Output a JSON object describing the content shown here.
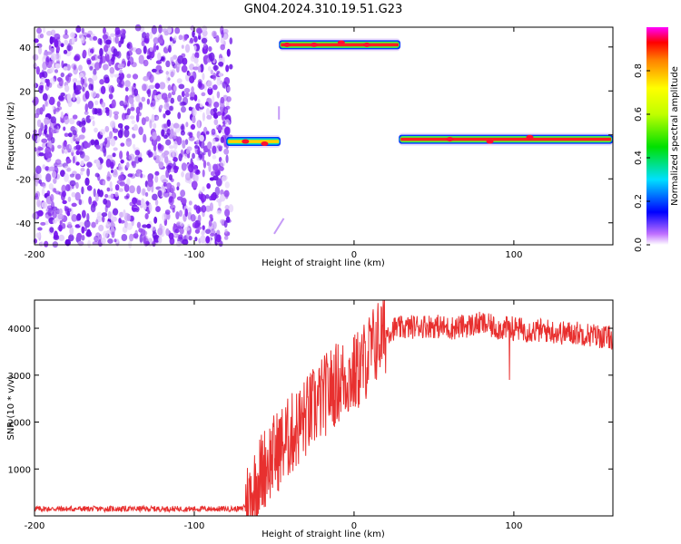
{
  "title": "GN04.2024.310.19.51.G23",
  "chart_data": [
    {
      "type": "heatmap",
      "xlabel": "Height of straight line (km)",
      "ylabel": "Frequency (Hz)",
      "xlim": [
        -200,
        162
      ],
      "ylim": [
        -50,
        49
      ],
      "xticks": [
        -200,
        -100,
        0,
        100
      ],
      "yticks": [
        -40,
        -20,
        0,
        20,
        40
      ],
      "colorbar": {
        "label": "Normalized spectral amplitude",
        "range": [
          0,
          1
        ],
        "ticks": [
          0.0,
          0.2,
          0.4,
          0.6,
          0.8
        ]
      },
      "features": [
        {
          "x_start": -200,
          "x_end": -77,
          "freq": "broadband noise -50 to 49",
          "amplitude": "low"
        },
        {
          "x_start": -80,
          "x_end": -46,
          "freq": -3,
          "amplitude": "medium"
        },
        {
          "x_start": -47,
          "x_end": 29,
          "freq": 41,
          "amplitude": "high"
        },
        {
          "x_start": 28,
          "x_end": 162,
          "freq": -2,
          "amplitude": "high"
        }
      ]
    },
    {
      "type": "line",
      "xlabel": "Height of straight line (km)",
      "ylabel": "SNR (10 * v/v)",
      "xlim": [
        -200,
        162
      ],
      "ylim": [
        0,
        4600
      ],
      "xticks": [
        -200,
        -100,
        0,
        100
      ],
      "yticks": [
        1000,
        2000,
        3000,
        4000
      ],
      "color": "#e8302f",
      "series": [
        {
          "x": [
            -200,
            -180,
            -160,
            -140,
            -120,
            -100,
            -80,
            -70,
            -65,
            -60,
            -55,
            -50,
            -45,
            -40,
            -35,
            -30,
            -25,
            -20,
            -15,
            -10,
            -5,
            0,
            5,
            10,
            15,
            20,
            25,
            30,
            40,
            50,
            60,
            70,
            80,
            90,
            100,
            110,
            120,
            130,
            140,
            150,
            160
          ],
          "y": [
            150,
            150,
            150,
            150,
            150,
            150,
            150,
            150,
            400,
            800,
            1100,
            1300,
            1500,
            1700,
            1900,
            2100,
            2300,
            2500,
            2700,
            2850,
            2950,
            3000,
            3200,
            3500,
            3750,
            3900,
            4000,
            4000,
            4050,
            4050,
            4000,
            4050,
            4100,
            4000,
            4000,
            3950,
            3950,
            3900,
            3900,
            3850,
            3800
          ]
        }
      ]
    }
  ]
}
